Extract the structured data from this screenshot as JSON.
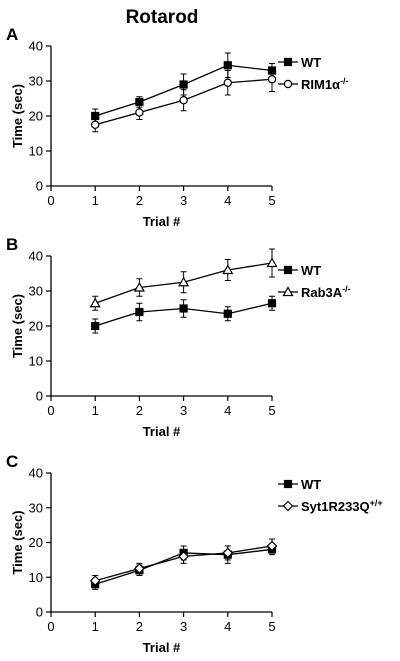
{
  "figure": {
    "title": "Rotarod"
  },
  "chart_data": [
    {
      "panel_letter": "A",
      "type": "line",
      "xlabel": "Trial #",
      "ylabel": "Time (sec)",
      "xlim": [
        0,
        5
      ],
      "ylim": [
        0,
        40
      ],
      "xticks": [
        0,
        1,
        2,
        3,
        4,
        5
      ],
      "yticks": [
        0,
        10,
        20,
        30,
        40
      ],
      "legend_position": "right",
      "x": [
        1,
        2,
        3,
        4,
        5
      ],
      "series": [
        {
          "name": "WT",
          "marker": "square",
          "fill": "filled",
          "values": [
            20,
            24,
            29,
            34.5,
            33
          ],
          "errors": [
            2,
            1.5,
            3,
            3.5,
            2
          ]
        },
        {
          "name": "RIM1α",
          "name_sup": "-/-",
          "marker": "circle",
          "fill": "open",
          "values": [
            17.5,
            21,
            24.5,
            29.5,
            30.5
          ],
          "errors": [
            2,
            2,
            3,
            3.5,
            3.5
          ]
        }
      ]
    },
    {
      "panel_letter": "B",
      "type": "line",
      "xlabel": "Trial #",
      "ylabel": "Time (sec)",
      "xlim": [
        0,
        5
      ],
      "ylim": [
        0,
        40
      ],
      "xticks": [
        0,
        1,
        2,
        3,
        4,
        5
      ],
      "yticks": [
        0,
        10,
        20,
        30,
        40
      ],
      "legend_position": "right",
      "x": [
        1,
        2,
        3,
        4,
        5
      ],
      "series": [
        {
          "name": "WT",
          "marker": "square",
          "fill": "filled",
          "values": [
            20,
            24,
            25,
            23.5,
            26.5
          ],
          "errors": [
            2,
            2.5,
            2.5,
            2,
            2
          ]
        },
        {
          "name": "Rab3A",
          "name_sup": "-/-",
          "marker": "triangle",
          "fill": "open",
          "values": [
            26.5,
            31,
            32.5,
            36,
            38
          ],
          "errors": [
            2,
            2.5,
            3,
            3,
            4
          ]
        }
      ]
    },
    {
      "panel_letter": "C",
      "type": "line",
      "xlabel": "Trial #",
      "ylabel": "Time (sec)",
      "xlim": [
        0,
        5
      ],
      "ylim": [
        0,
        40
      ],
      "xticks": [
        0,
        1,
        2,
        3,
        4,
        5
      ],
      "yticks": [
        0,
        10,
        20,
        30,
        40
      ],
      "legend_position": "right",
      "x": [
        1,
        2,
        3,
        4,
        5
      ],
      "series": [
        {
          "name": "WT",
          "marker": "square",
          "fill": "filled",
          "values": [
            8,
            12,
            17,
            16.5,
            18
          ],
          "errors": [
            1.5,
            1.5,
            2,
            2.5,
            1.5
          ]
        },
        {
          "name": "Syt1R233Q",
          "name_sup": "+/+",
          "marker": "diamond",
          "fill": "open",
          "values": [
            9,
            12.5,
            16,
            17,
            19
          ],
          "errors": [
            1.5,
            1.5,
            2,
            2,
            2
          ]
        }
      ]
    }
  ]
}
